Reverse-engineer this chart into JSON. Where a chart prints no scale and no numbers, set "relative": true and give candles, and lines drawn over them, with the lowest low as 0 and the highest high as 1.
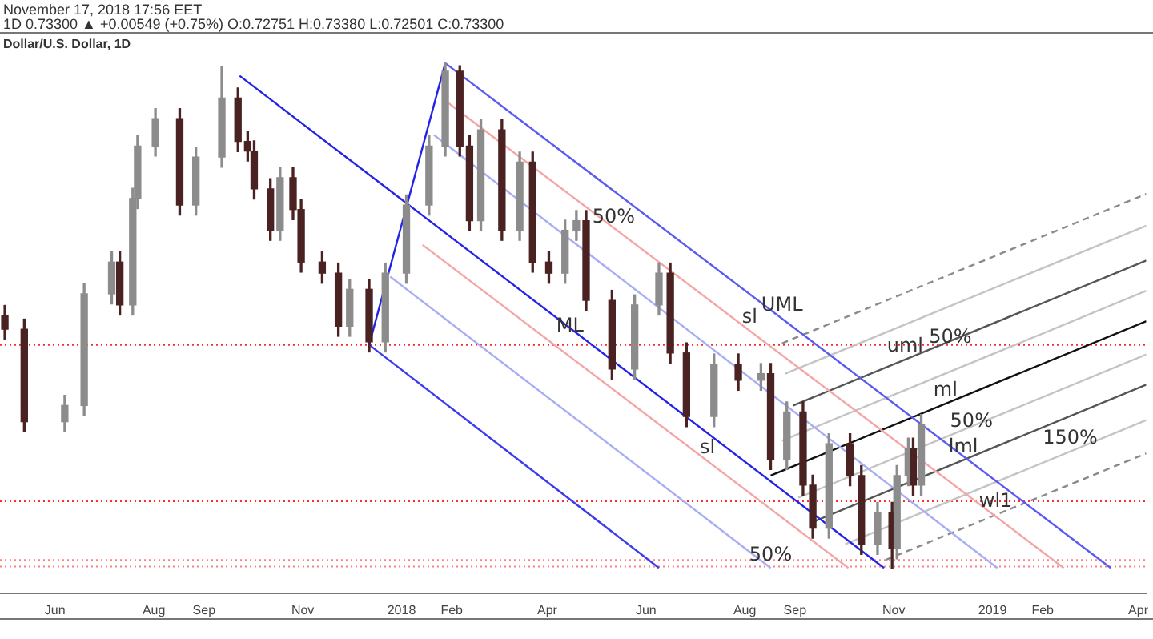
{
  "chart_data": {
    "type": "candlestick",
    "title": "Dollar/U.S. Dollar, 1D",
    "subtitle": "1D 0.73300 ▲ +0.00549 (+0.75%) O:0.72751 H:0.73380 L:0.72501 C:0.73300",
    "relative": true,
    "grid": false,
    "legend": false,
    "tick_labels": "x",
    "xlim": [
      "2017-04-28",
      "2019-04-06"
    ],
    "xticks": [
      {
        "value": "2017-06-01",
        "label": "Jun"
      },
      {
        "value": "2017-08-01",
        "label": "Aug"
      },
      {
        "value": "2017-09-01",
        "label": "Sep"
      },
      {
        "value": "2017-11-01",
        "label": "Nov"
      },
      {
        "value": "2018-01-01",
        "label": "2018"
      },
      {
        "value": "2018-02-01",
        "label": "Feb"
      },
      {
        "value": "2018-04-01",
        "label": "Apr"
      },
      {
        "value": "2018-06-01",
        "label": "Jun"
      },
      {
        "value": "2018-08-01",
        "label": "Aug"
      },
      {
        "value": "2018-09-01",
        "label": "Sep"
      },
      {
        "value": "2018-11-01",
        "label": "Nov"
      },
      {
        "value": "2019-01-01",
        "label": "2019"
      },
      {
        "value": "2019-02-01",
        "label": "Feb"
      },
      {
        "value": "2019-04-01",
        "label": "Apr"
      }
    ],
    "x": [
      "2017-05-01",
      "2017-05-13",
      "2017-06-07",
      "2017-06-19",
      "2017-07-06",
      "2017-07-11",
      "2017-07-19",
      "2017-07-22",
      "2017-08-02",
      "2017-08-17",
      "2017-08-27",
      "2017-09-12",
      "2017-09-22",
      "2017-09-28",
      "2017-10-02",
      "2017-10-12",
      "2017-10-18",
      "2017-10-26",
      "2017-10-31",
      "2017-11-13",
      "2017-11-23",
      "2017-11-30",
      "2017-12-12",
      "2017-12-22",
      "2018-01-04",
      "2018-01-18",
      "2018-01-28",
      "2018-02-06",
      "2018-02-12",
      "2018-02-19",
      "2018-03-04",
      "2018-03-15",
      "2018-03-23",
      "2018-04-02",
      "2018-04-12",
      "2018-04-19",
      "2018-04-25",
      "2018-05-11",
      "2018-05-25",
      "2018-06-09",
      "2018-06-16",
      "2018-06-26",
      "2018-07-13",
      "2018-07-28",
      "2018-08-11",
      "2018-08-17",
      "2018-08-27",
      "2018-09-06",
      "2018-09-12",
      "2018-09-22",
      "2018-10-05",
      "2018-10-12",
      "2018-10-22",
      "2018-10-31",
      "2018-11-03",
      "2018-11-10",
      "2018-11-13",
      "2018-11-18"
    ],
    "ohlc": [
      [
        0.5,
        0.52,
        0.453,
        0.473
      ],
      [
        0.473,
        0.493,
        0.27,
        0.29
      ],
      [
        0.29,
        0.342,
        0.27,
        0.322
      ],
      [
        0.322,
        0.563,
        0.302,
        0.543
      ],
      [
        0.543,
        0.626,
        0.523,
        0.606
      ],
      [
        0.606,
        0.626,
        0.501,
        0.521
      ],
      [
        0.521,
        0.752,
        0.501,
        0.732
      ],
      [
        0.732,
        0.856,
        0.712,
        0.836
      ],
      [
        0.836,
        0.91,
        0.816,
        0.89
      ],
      [
        0.89,
        0.91,
        0.699,
        0.719
      ],
      [
        0.719,
        0.834,
        0.699,
        0.814
      ],
      [
        0.814,
        0.994,
        0.794,
        0.931
      ],
      [
        0.931,
        0.951,
        0.825,
        0.845
      ],
      [
        0.845,
        0.865,
        0.806,
        0.826
      ],
      [
        0.826,
        0.846,
        0.731,
        0.751
      ],
      [
        0.751,
        0.771,
        0.649,
        0.669
      ],
      [
        0.669,
        0.793,
        0.649,
        0.773
      ],
      [
        0.773,
        0.793,
        0.69,
        0.71
      ],
      [
        0.71,
        0.73,
        0.586,
        0.606
      ],
      [
        0.606,
        0.626,
        0.564,
        0.584
      ],
      [
        0.584,
        0.604,
        0.459,
        0.479
      ],
      [
        0.479,
        0.572,
        0.459,
        0.552
      ],
      [
        0.552,
        0.572,
        0.428,
        0.448
      ],
      [
        0.448,
        0.604,
        0.428,
        0.584
      ],
      [
        0.584,
        0.739,
        0.564,
        0.719
      ],
      [
        0.719,
        0.856,
        0.699,
        0.836
      ],
      [
        0.836,
        1,
        0.816,
        0.984
      ],
      [
        0.984,
        0.995,
        0.816,
        0.836
      ],
      [
        0.836,
        0.856,
        0.668,
        0.688
      ],
      [
        0.688,
        0.888,
        0.668,
        0.868
      ],
      [
        0.868,
        0.888,
        0.649,
        0.669
      ],
      [
        0.669,
        0.824,
        0.649,
        0.804
      ],
      [
        0.804,
        0.824,
        0.586,
        0.606
      ],
      [
        0.606,
        0.626,
        0.564,
        0.584
      ],
      [
        0.584,
        0.689,
        0.564,
        0.669
      ],
      [
        0.669,
        0.708,
        0.649,
        0.688
      ],
      [
        0.688,
        0.708,
        0.51,
        0.53
      ],
      [
        0.53,
        0.55,
        0.374,
        0.394
      ],
      [
        0.394,
        0.541,
        0.374,
        0.521
      ],
      [
        0.521,
        0.604,
        0.501,
        0.584
      ],
      [
        0.584,
        0.604,
        0.406,
        0.426
      ],
      [
        0.426,
        0.446,
        0.28,
        0.3
      ],
      [
        0.3,
        0.424,
        0.28,
        0.404
      ],
      [
        0.404,
        0.424,
        0.352,
        0.372
      ],
      [
        0.372,
        0.405,
        0.352,
        0.385
      ],
      [
        0.385,
        0.405,
        0.195,
        0.215
      ],
      [
        0.215,
        0.329,
        0.195,
        0.309
      ],
      [
        0.309,
        0.329,
        0.144,
        0.164
      ],
      [
        0.164,
        0.184,
        0.059,
        0.079
      ],
      [
        0.079,
        0.266,
        0.059,
        0.246
      ],
      [
        0.246,
        0.266,
        0.163,
        0.183
      ],
      [
        0.183,
        0.203,
        0.027,
        0.047
      ],
      [
        0.047,
        0.13,
        0.027,
        0.11
      ],
      [
        0.11,
        0.13,
        0,
        0.038
      ],
      [
        0.038,
        0.203,
        0.018,
        0.183
      ],
      [
        0.183,
        0.257,
        0.163,
        0.237
      ],
      [
        0.237,
        0.257,
        0.144,
        0.164
      ],
      [
        0.164,
        0.304,
        0.144,
        0.284
      ]
    ],
    "colors": [
      "#4b2222",
      "#4b2222",
      "#8c8c8c",
      "#8c8c8c",
      "#8c8c8c",
      "#4b2222",
      "#8c8c8c",
      "#8c8c8c",
      "#8c8c8c",
      "#4b2222",
      "#8c8c8c",
      "#8c8c8c",
      "#4b2222",
      "#4b2222",
      "#4b2222",
      "#4b2222",
      "#8c8c8c",
      "#4b2222",
      "#4b2222",
      "#4b2222",
      "#4b2222",
      "#8c8c8c",
      "#4b2222",
      "#8c8c8c",
      "#8c8c8c",
      "#8c8c8c",
      "#8c8c8c",
      "#4b2222",
      "#4b2222",
      "#8c8c8c",
      "#4b2222",
      "#8c8c8c",
      "#4b2222",
      "#4b2222",
      "#8c8c8c",
      "#8c8c8c",
      "#4b2222",
      "#4b2222",
      "#8c8c8c",
      "#8c8c8c",
      "#4b2222",
      "#4b2222",
      "#8c8c8c",
      "#4b2222",
      "#8c8c8c",
      "#4b2222",
      "#8c8c8c",
      "#4b2222",
      "#4b2222",
      "#8c8c8c",
      "#4b2222",
      "#4b2222",
      "#8c8c8c",
      "#4b2222",
      "#8c8c8c",
      "#8c8c8c",
      "#4b2222",
      "#8c8c8c"
    ],
    "series": [
      {
        "type": "line",
        "color": "#2323e8",
        "line_style": "solid",
        "x": [
          "2017-09-23",
          "2018-10-26"
        ],
        "values": [
          0.975,
          0
        ]
      },
      {
        "type": "line",
        "color": "#2323e8",
        "line_style": "solid",
        "x": [
          "2017-12-12",
          "2018-01-28"
        ],
        "values": [
          0.442,
          1
        ]
      },
      {
        "type": "line",
        "color": "#3b3bf0",
        "line_style": "solid",
        "x": [
          "2017-12-12",
          "2018-06-09"
        ],
        "values": [
          0.442,
          0
        ]
      },
      {
        "type": "line",
        "color": "#5a5af2",
        "line_style": "solid",
        "x": [
          "2018-01-28",
          "2019-03-15"
        ],
        "values": [
          1,
          0
        ]
      },
      {
        "type": "line",
        "color": "#a8aef4",
        "line_style": "solid",
        "x": [
          "2018-01-21",
          "2019-01-04"
        ],
        "values": [
          0.858,
          0
        ]
      },
      {
        "type": "line",
        "color": "#a8aef4",
        "line_style": "solid",
        "x": [
          "2017-12-25",
          "2018-08-17"
        ],
        "values": [
          0.577,
          0
        ]
      },
      {
        "type": "line",
        "color": "#f4a6a6",
        "line_style": "solid",
        "x": [
          "2018-01-30",
          "2019-02-14"
        ],
        "values": [
          0.921,
          0
        ]
      },
      {
        "type": "line",
        "color": "#f4a6a6",
        "line_style": "solid",
        "x": [
          "2018-01-14",
          "2018-10-04"
        ],
        "values": [
          0.64,
          0
        ]
      },
      {
        "type": "line",
        "color": "#8a8a8a",
        "line_style": "dashed",
        "x": [
          "2018-08-24",
          "2019-04-06"
        ],
        "values": [
          0.445,
          0.741
        ]
      },
      {
        "type": "line",
        "color": "#c4c4c4",
        "line_style": "solid",
        "x": [
          "2018-08-26",
          "2019-04-06"
        ],
        "values": [
          0.385,
          0.678
        ]
      },
      {
        "type": "line",
        "color": "#555555",
        "line_style": "solid",
        "x": [
          "2018-08-31",
          "2019-04-06"
        ],
        "values": [
          0.322,
          0.609
        ]
      },
      {
        "type": "line",
        "color": "#c4c4c4",
        "line_style": "solid",
        "x": [
          "2018-08-24",
          "2019-04-06"
        ],
        "values": [
          0.252,
          0.549
        ]
      },
      {
        "type": "line",
        "color": "#111111",
        "line_style": "solid",
        "x": [
          "2018-08-17",
          "2019-04-06"
        ],
        "values": [
          0.183,
          0.489
        ]
      },
      {
        "type": "line",
        "color": "#c4c4c4",
        "line_style": "solid",
        "x": [
          "2018-09-03",
          "2019-04-06"
        ],
        "values": [
          0.139,
          0.423
        ]
      },
      {
        "type": "line",
        "color": "#555555",
        "line_style": "solid",
        "x": [
          "2018-09-12",
          "2019-04-06"
        ],
        "values": [
          0.091,
          0.363
        ]
      },
      {
        "type": "line",
        "color": "#c4c4c4",
        "line_style": "solid",
        "x": [
          "2018-10-02",
          "2019-04-06"
        ],
        "values": [
          0.047,
          0.293
        ]
      },
      {
        "type": "line",
        "color": "#8a8a8a",
        "line_style": "dashed",
        "x": [
          "2018-10-27",
          "2019-04-06"
        ],
        "values": [
          0.016,
          0.227
        ]
      }
    ],
    "ref_lines": [
      {
        "axis": "y",
        "value": 0.442,
        "color": "#ff2a2a",
        "line_style": "dotted"
      },
      {
        "axis": "y",
        "value": 0.132,
        "color": "#ff2a2a",
        "line_style": "dotted"
      },
      {
        "axis": "y",
        "value": 0.016,
        "color": "#ff8080",
        "line_style": "dotted"
      },
      {
        "axis": "y",
        "value": 0.003,
        "color": "#ff8080",
        "line_style": "dotted"
      }
    ],
    "annotations": [
      "November 17, 2018 17:56 EET",
      {
        "text": "50%",
        "x": "2018-05-12",
        "y": 0.668
      },
      {
        "text": "ML",
        "x": "2018-04-15",
        "y": 0.453
      },
      {
        "text": "sl",
        "x": "2018-08-04",
        "y": 0.47
      },
      {
        "text": "UML",
        "x": "2018-08-24",
        "y": 0.494
      },
      {
        "text": "uml",
        "x": "2018-11-08",
        "y": 0.413
      },
      {
        "text": "50%",
        "x": "2018-12-06",
        "y": 0.431
      },
      {
        "text": "ml",
        "x": "2018-12-03",
        "y": 0.326
      },
      {
        "text": "50%",
        "x": "2018-12-19",
        "y": 0.264
      },
      {
        "text": "sl",
        "x": "2018-07-09",
        "y": 0.212
      },
      {
        "text": "lml",
        "x": "2018-12-14",
        "y": 0.214
      },
      {
        "text": "150%",
        "x": "2019-02-18",
        "y": 0.231
      },
      {
        "text": "wl1",
        "x": "2019-01-03",
        "y": 0.105
      },
      {
        "text": "50%",
        "x": "2018-08-17",
        "y": 0
      }
    ]
  }
}
